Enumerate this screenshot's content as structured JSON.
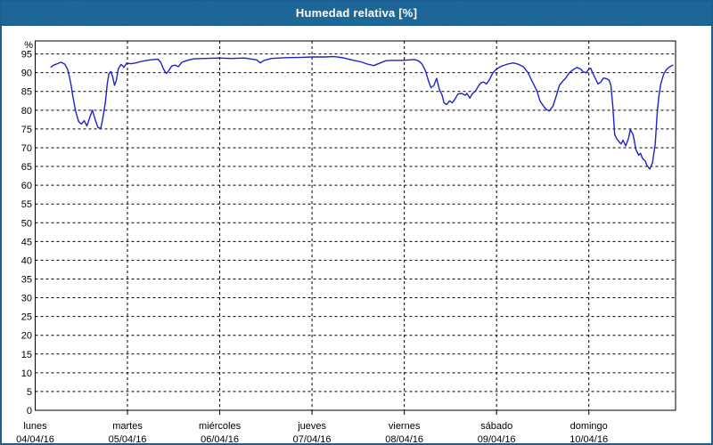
{
  "window": {
    "title": "Humedad relativa [%]"
  },
  "colors": {
    "header_bg": "#1e699b",
    "header_text": "#ffffff",
    "frame_border": "#1d5d96",
    "plot_border": "#000000",
    "grid": "#000000",
    "line": "#2121c8",
    "background": "#ffffff"
  },
  "chart_data": {
    "type": "line",
    "title": "Humedad relativa [%]",
    "y_unit": "%",
    "ylim": [
      0,
      98.5
    ],
    "yticks": [
      0,
      5,
      10,
      15,
      20,
      25,
      30,
      35,
      40,
      45,
      50,
      55,
      60,
      65,
      70,
      75,
      80,
      85,
      90,
      95
    ],
    "grid": true,
    "legend": "none",
    "x_axis": {
      "span_days": 6.94,
      "days": [
        {
          "name": "lunes",
          "date": "04/04/16"
        },
        {
          "name": "martes",
          "date": "05/04/16"
        },
        {
          "name": "miércoles",
          "date": "06/04/16"
        },
        {
          "name": "jueves",
          "date": "07/04/16"
        },
        {
          "name": "viernes",
          "date": "08/04/16"
        },
        {
          "name": "sábado",
          "date": "09/04/16"
        },
        {
          "name": "domingo",
          "date": "10/04/16"
        }
      ]
    },
    "series": [
      {
        "name": "Humedad relativa",
        "color": "#2121c8",
        "x_unit": "days_from_monday_00h",
        "points": [
          [
            0.171,
            91.5
          ],
          [
            0.2,
            92.0
          ],
          [
            0.24,
            92.4
          ],
          [
            0.28,
            92.8
          ],
          [
            0.32,
            92.3
          ],
          [
            0.35,
            91.0
          ],
          [
            0.37,
            89.0
          ],
          [
            0.39,
            86.5
          ],
          [
            0.41,
            83.5
          ],
          [
            0.44,
            79.5
          ],
          [
            0.47,
            77.0
          ],
          [
            0.5,
            76.3
          ],
          [
            0.53,
            77.2
          ],
          [
            0.56,
            75.8
          ],
          [
            0.59,
            78.0
          ],
          [
            0.62,
            80.0
          ],
          [
            0.65,
            77.5
          ],
          [
            0.68,
            75.4
          ],
          [
            0.71,
            75.1
          ],
          [
            0.73,
            77.5
          ],
          [
            0.76,
            82.0
          ],
          [
            0.78,
            87.0
          ],
          [
            0.8,
            89.8
          ],
          [
            0.82,
            90.3
          ],
          [
            0.84,
            88.8
          ],
          [
            0.86,
            86.6
          ],
          [
            0.88,
            88.0
          ],
          [
            0.9,
            91.0
          ],
          [
            0.93,
            92.2
          ],
          [
            0.95,
            91.8
          ],
          [
            0.96,
            91.4
          ],
          [
            0.99,
            92.5
          ],
          [
            1.04,
            92.4
          ],
          [
            1.09,
            92.6
          ],
          [
            1.15,
            93.0
          ],
          [
            1.21,
            93.3
          ],
          [
            1.28,
            93.5
          ],
          [
            1.33,
            93.6
          ],
          [
            1.36,
            92.8
          ],
          [
            1.39,
            91.0
          ],
          [
            1.42,
            89.8
          ],
          [
            1.44,
            90.3
          ],
          [
            1.48,
            91.8
          ],
          [
            1.52,
            92.0
          ],
          [
            1.55,
            91.6
          ],
          [
            1.59,
            92.8
          ],
          [
            1.65,
            93.3
          ],
          [
            1.72,
            93.7
          ],
          [
            1.84,
            93.8
          ],
          [
            1.99,
            93.9
          ],
          [
            2.13,
            93.8
          ],
          [
            2.27,
            93.9
          ],
          [
            2.4,
            93.4
          ],
          [
            2.44,
            92.6
          ],
          [
            2.48,
            93.3
          ],
          [
            2.56,
            93.8
          ],
          [
            2.71,
            94.0
          ],
          [
            2.9,
            94.1
          ],
          [
            3.0,
            94.2
          ],
          [
            3.14,
            94.2
          ],
          [
            3.24,
            94.3
          ],
          [
            3.33,
            94.0
          ],
          [
            3.43,
            93.4
          ],
          [
            3.53,
            92.9
          ],
          [
            3.6,
            92.3
          ],
          [
            3.67,
            91.9
          ],
          [
            3.74,
            92.6
          ],
          [
            3.8,
            93.2
          ],
          [
            3.87,
            93.3
          ],
          [
            3.98,
            93.3
          ],
          [
            4.11,
            93.5
          ],
          [
            4.15,
            93.2
          ],
          [
            4.19,
            92.4
          ],
          [
            4.23,
            90.5
          ],
          [
            4.26,
            88.0
          ],
          [
            4.29,
            86.0
          ],
          [
            4.32,
            86.6
          ],
          [
            4.35,
            88.5
          ],
          [
            4.38,
            85.5
          ],
          [
            4.41,
            84.0
          ],
          [
            4.43,
            82.0
          ],
          [
            4.46,
            81.5
          ],
          [
            4.49,
            82.5
          ],
          [
            4.52,
            82.0
          ],
          [
            4.55,
            83.0
          ],
          [
            4.58,
            84.3
          ],
          [
            4.62,
            84.5
          ],
          [
            4.66,
            84.0
          ],
          [
            4.68,
            84.5
          ],
          [
            4.71,
            83.2
          ],
          [
            4.74,
            84.5
          ],
          [
            4.77,
            85.0
          ],
          [
            4.8,
            86.3
          ],
          [
            4.83,
            87.3
          ],
          [
            4.86,
            87.5
          ],
          [
            4.89,
            87.0
          ],
          [
            4.92,
            88.0
          ],
          [
            4.96,
            90.0
          ],
          [
            5.0,
            91.0
          ],
          [
            5.05,
            91.7
          ],
          [
            5.12,
            92.3
          ],
          [
            5.18,
            92.6
          ],
          [
            5.23,
            92.3
          ],
          [
            5.29,
            91.6
          ],
          [
            5.34,
            90.0
          ],
          [
            5.39,
            87.5
          ],
          [
            5.44,
            85.0
          ],
          [
            5.47,
            82.5
          ],
          [
            5.51,
            81.0
          ],
          [
            5.54,
            80.2
          ],
          [
            5.57,
            79.8
          ],
          [
            5.61,
            81.0
          ],
          [
            5.65,
            84.0
          ],
          [
            5.68,
            86.6
          ],
          [
            5.72,
            87.8
          ],
          [
            5.75,
            88.6
          ],
          [
            5.79,
            90.0
          ],
          [
            5.83,
            90.8
          ],
          [
            5.87,
            91.4
          ],
          [
            5.91,
            91.0
          ],
          [
            5.94,
            90.2
          ],
          [
            5.97,
            90.0
          ],
          [
            6.0,
            91.0
          ],
          [
            6.02,
            91.2
          ],
          [
            6.04,
            90.0
          ],
          [
            6.07,
            88.5
          ],
          [
            6.1,
            87.0
          ],
          [
            6.13,
            87.5
          ],
          [
            6.16,
            88.6
          ],
          [
            6.19,
            88.4
          ],
          [
            6.22,
            88.0
          ],
          [
            6.24,
            86.5
          ],
          [
            6.26,
            81.0
          ],
          [
            6.28,
            73.5
          ],
          [
            6.3,
            72.5
          ],
          [
            6.33,
            71.5
          ],
          [
            6.35,
            71.0
          ],
          [
            6.37,
            72.0
          ],
          [
            6.4,
            70.5
          ],
          [
            6.43,
            72.5
          ],
          [
            6.45,
            74.8
          ],
          [
            6.48,
            73.5
          ],
          [
            6.51,
            69.5
          ],
          [
            6.54,
            68.0
          ],
          [
            6.56,
            68.5
          ],
          [
            6.58,
            67.2
          ],
          [
            6.61,
            66.5
          ],
          [
            6.63,
            65.3
          ],
          [
            6.66,
            64.3
          ],
          [
            6.69,
            66.0
          ],
          [
            6.72,
            71.0
          ],
          [
            6.74,
            79.0
          ],
          [
            6.76,
            84.0
          ],
          [
            6.78,
            87.0
          ],
          [
            6.81,
            89.5
          ],
          [
            6.84,
            90.8
          ],
          [
            6.87,
            91.5
          ],
          [
            6.91,
            92.0
          ]
        ]
      }
    ]
  }
}
